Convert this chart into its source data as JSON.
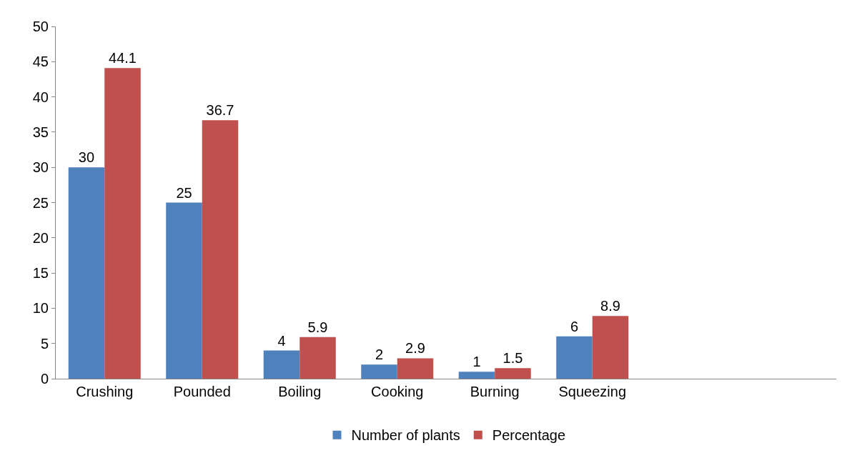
{
  "chart_data": {
    "type": "bar",
    "categories": [
      "Crushing",
      "Pounded",
      "Boiling",
      "Cooking",
      "Burning",
      "Squeezing",
      null,
      null
    ],
    "series": [
      {
        "name": "Number of plants",
        "color": "#4f81bd",
        "values": [
          30,
          25,
          4,
          2,
          1,
          6,
          null,
          null
        ]
      },
      {
        "name": "Percentage",
        "color": "#c0504d",
        "values": [
          44.1,
          36.7,
          5.9,
          2.9,
          1.5,
          8.9,
          null,
          null
        ]
      }
    ],
    "ylim": [
      0,
      50
    ],
    "yticks": [
      0,
      5,
      10,
      15,
      20,
      25,
      30,
      35,
      40,
      45,
      50
    ],
    "legend": "bottom",
    "data_labels": true
  }
}
